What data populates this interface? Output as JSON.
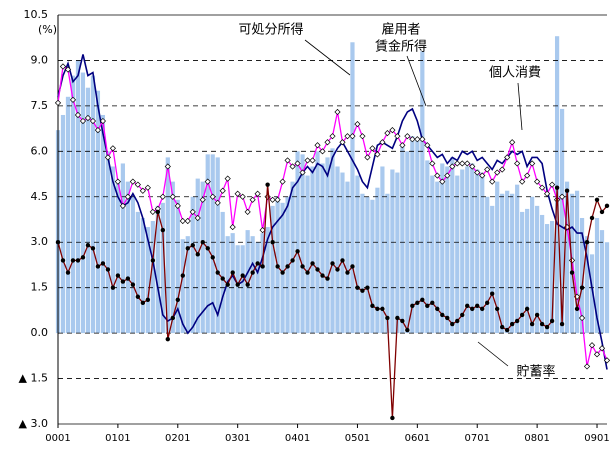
{
  "chart_data": {
    "type": "bar-line",
    "unit": "(%)",
    "ylim": [
      -3,
      10.5
    ],
    "yticks": [
      {
        "value": -3,
        "label": "▲ 3.0"
      },
      {
        "value": -1.5,
        "label": "▲ 1.5"
      },
      {
        "value": 0,
        "label": "0.0"
      },
      1.5,
      {
        "value": 3,
        "label": "3.0"
      },
      4.5,
      {
        "value": 6,
        "label": "6.0"
      },
      7.5,
      {
        "value": 9,
        "label": "9.0"
      },
      10.5
    ],
    "grid": true,
    "categories": [
      "0001",
      null,
      null,
      null,
      null,
      null,
      null,
      null,
      null,
      null,
      null,
      null,
      "0101",
      null,
      null,
      null,
      null,
      null,
      null,
      null,
      null,
      null,
      null,
      null,
      "0201",
      null,
      null,
      null,
      null,
      null,
      null,
      null,
      null,
      null,
      null,
      null,
      "0301",
      null,
      null,
      null,
      null,
      null,
      null,
      null,
      null,
      null,
      null,
      null,
      "0401",
      null,
      null,
      null,
      null,
      null,
      null,
      null,
      null,
      null,
      null,
      null,
      "0501",
      null,
      null,
      null,
      null,
      null,
      null,
      null,
      null,
      null,
      null,
      null,
      "0601",
      null,
      null,
      null,
      null,
      null,
      null,
      null,
      null,
      null,
      null,
      null,
      "0701",
      null,
      null,
      null,
      null,
      null,
      null,
      null,
      null,
      null,
      null,
      null,
      "0801",
      null,
      null,
      null,
      null,
      null,
      null,
      null,
      null,
      null,
      null,
      null,
      "0901",
      null,
      null
    ],
    "series": [
      {
        "name": "可処分所得",
        "kind": "bar",
        "color": "#a9c9ee",
        "values": [
          6.7,
          7.2,
          7.8,
          8.5,
          9.0,
          8.6,
          8.1,
          8.5,
          8.0,
          7.2,
          6.0,
          5.5,
          5.0,
          5.6,
          5.0,
          4.5,
          4.0,
          3.8,
          3.5,
          3.7,
          4.2,
          4.3,
          5.8,
          5.0,
          4.4,
          3.1,
          3.2,
          4.5,
          5.1,
          5.0,
          5.9,
          5.9,
          5.8,
          4.0,
          3.2,
          3.3,
          2.9,
          2.9,
          3.4,
          3.2,
          3.0,
          3.3,
          3.5,
          4.2,
          4.5,
          4.3,
          4.5,
          5.0,
          6.0,
          5.9,
          5.2,
          5.5,
          6.0,
          5.6,
          5.8,
          6.1,
          5.5,
          5.3,
          5.0,
          9.6,
          5.2,
          4.6,
          4.5,
          4.4,
          4.8,
          5.5,
          4.6,
          5.4,
          5.3,
          6.2,
          6.0,
          6.5,
          6.4,
          9.3,
          5.7,
          5.2,
          5.0,
          5.6,
          5.5,
          5.8,
          5.2,
          5.4,
          5.5,
          5.6,
          5.4,
          5.3,
          4.5,
          4.2,
          5.0,
          4.6,
          4.7,
          4.6,
          4.9,
          4.0,
          4.1,
          4.5,
          4.2,
          3.9,
          3.6,
          3.7,
          9.8,
          7.4,
          5.0,
          4.6,
          4.7,
          3.8,
          3.2,
          2.6,
          3.8,
          3.4,
          3.0
        ]
      },
      {
        "name": [
          "雇用者",
          "賃金所得"
        ],
        "kind": "line",
        "color": "#000080",
        "values": [
          7.8,
          8.5,
          8.9,
          8.3,
          8.5,
          9.2,
          8.5,
          8.6,
          7.5,
          6.6,
          5.8,
          5.0,
          4.5,
          4.2,
          4.3,
          4.6,
          4.3,
          3.8,
          3.1,
          2.4,
          1.5,
          0.6,
          0.4,
          0.5,
          0.8,
          0.3,
          0.0,
          0.2,
          0.5,
          0.7,
          0.9,
          1.0,
          0.6,
          1.2,
          1.7,
          1.9,
          1.6,
          1.7,
          2.0,
          2.3,
          2.0,
          2.5,
          3.1,
          3.5,
          3.7,
          3.9,
          4.2,
          4.8,
          5.0,
          5.3,
          5.5,
          5.3,
          5.6,
          5.5,
          5.2,
          5.8,
          6.1,
          6.3,
          6.0,
          5.7,
          5.4,
          5.0,
          4.8,
          5.5,
          6.2,
          6.3,
          6.2,
          6.1,
          6.5,
          7.0,
          7.3,
          7.4,
          7.0,
          6.4,
          6.2,
          6.0,
          5.8,
          5.9,
          5.6,
          5.8,
          5.7,
          6.0,
          5.9,
          6.0,
          5.7,
          5.8,
          5.6,
          5.4,
          5.7,
          5.6,
          5.8,
          6.0,
          5.9,
          6.0,
          5.5,
          5.8,
          5.8,
          5.6,
          4.7,
          4.1,
          3.6,
          3.5,
          3.4,
          3.5,
          3.3,
          3.3,
          2.5,
          1.5,
          0.5,
          -0.3,
          -1.2
        ]
      },
      {
        "name": "個人消費",
        "kind": "line-diamond",
        "color": "#ff00ff",
        "values": [
          7.6,
          8.8,
          8.7,
          7.7,
          7.2,
          7.0,
          7.1,
          7.0,
          6.7,
          7.0,
          5.8,
          6.1,
          5.0,
          4.2,
          4.5,
          5.0,
          4.9,
          4.7,
          4.8,
          4.0,
          4.1,
          4.5,
          5.5,
          4.5,
          4.2,
          3.7,
          3.7,
          4.0,
          3.8,
          4.4,
          5.0,
          4.5,
          4.3,
          4.7,
          5.1,
          3.5,
          4.6,
          4.5,
          4.0,
          4.4,
          4.6,
          3.4,
          4.5,
          4.4,
          4.4,
          5.0,
          5.7,
          5.5,
          5.6,
          5.3,
          5.7,
          5.7,
          6.2,
          6.0,
          6.3,
          6.5,
          7.3,
          6.3,
          6.5,
          6.5,
          6.9,
          6.5,
          5.8,
          6.1,
          5.9,
          6.3,
          6.6,
          6.7,
          6.5,
          6.2,
          6.5,
          6.4,
          6.4,
          6.4,
          6.2,
          5.6,
          5.2,
          5.0,
          5.2,
          5.5,
          5.6,
          5.6,
          5.6,
          5.5,
          5.3,
          5.2,
          5.4,
          5.0,
          5.3,
          5.4,
          5.8,
          6.3,
          5.6,
          5.0,
          5.2,
          5.6,
          5.0,
          4.8,
          4.6,
          4.9,
          4.4,
          4.5,
          3.5,
          2.4,
          1.2,
          0.5,
          -1.1,
          -0.4,
          -0.7,
          -0.5,
          -0.9
        ]
      },
      {
        "name": "貯蓄率",
        "kind": "line-dot",
        "color": "#800000",
        "values": [
          3.0,
          2.4,
          2.0,
          2.4,
          2.4,
          2.5,
          2.9,
          2.8,
          2.2,
          2.3,
          2.1,
          1.5,
          1.9,
          1.7,
          1.8,
          1.6,
          1.2,
          1.0,
          1.1,
          2.4,
          4.0,
          3.4,
          -0.2,
          0.5,
          1.1,
          1.9,
          2.8,
          2.9,
          2.6,
          3.0,
          2.8,
          2.5,
          2.0,
          1.8,
          1.6,
          2.0,
          1.6,
          1.9,
          1.6,
          2.0,
          2.3,
          2.2,
          4.9,
          3.0,
          2.2,
          2.0,
          2.2,
          2.4,
          2.7,
          2.2,
          2.0,
          2.3,
          2.1,
          1.9,
          1.8,
          2.3,
          2.1,
          2.4,
          2.0,
          2.2,
          1.5,
          1.4,
          1.5,
          0.9,
          0.8,
          0.8,
          0.5,
          -2.8,
          0.5,
          0.4,
          0.1,
          0.9,
          1.0,
          1.1,
          0.9,
          1.0,
          0.8,
          0.6,
          0.5,
          0.3,
          0.4,
          0.6,
          0.9,
          0.8,
          0.9,
          0.8,
          1.0,
          1.3,
          0.8,
          0.2,
          0.1,
          0.3,
          0.4,
          0.6,
          0.8,
          0.3,
          0.6,
          0.3,
          0.2,
          0.4,
          4.8,
          0.3,
          4.7,
          2.0,
          0.8,
          1.5,
          3.0,
          3.8,
          4.4,
          4.0,
          4.2
        ]
      }
    ]
  }
}
